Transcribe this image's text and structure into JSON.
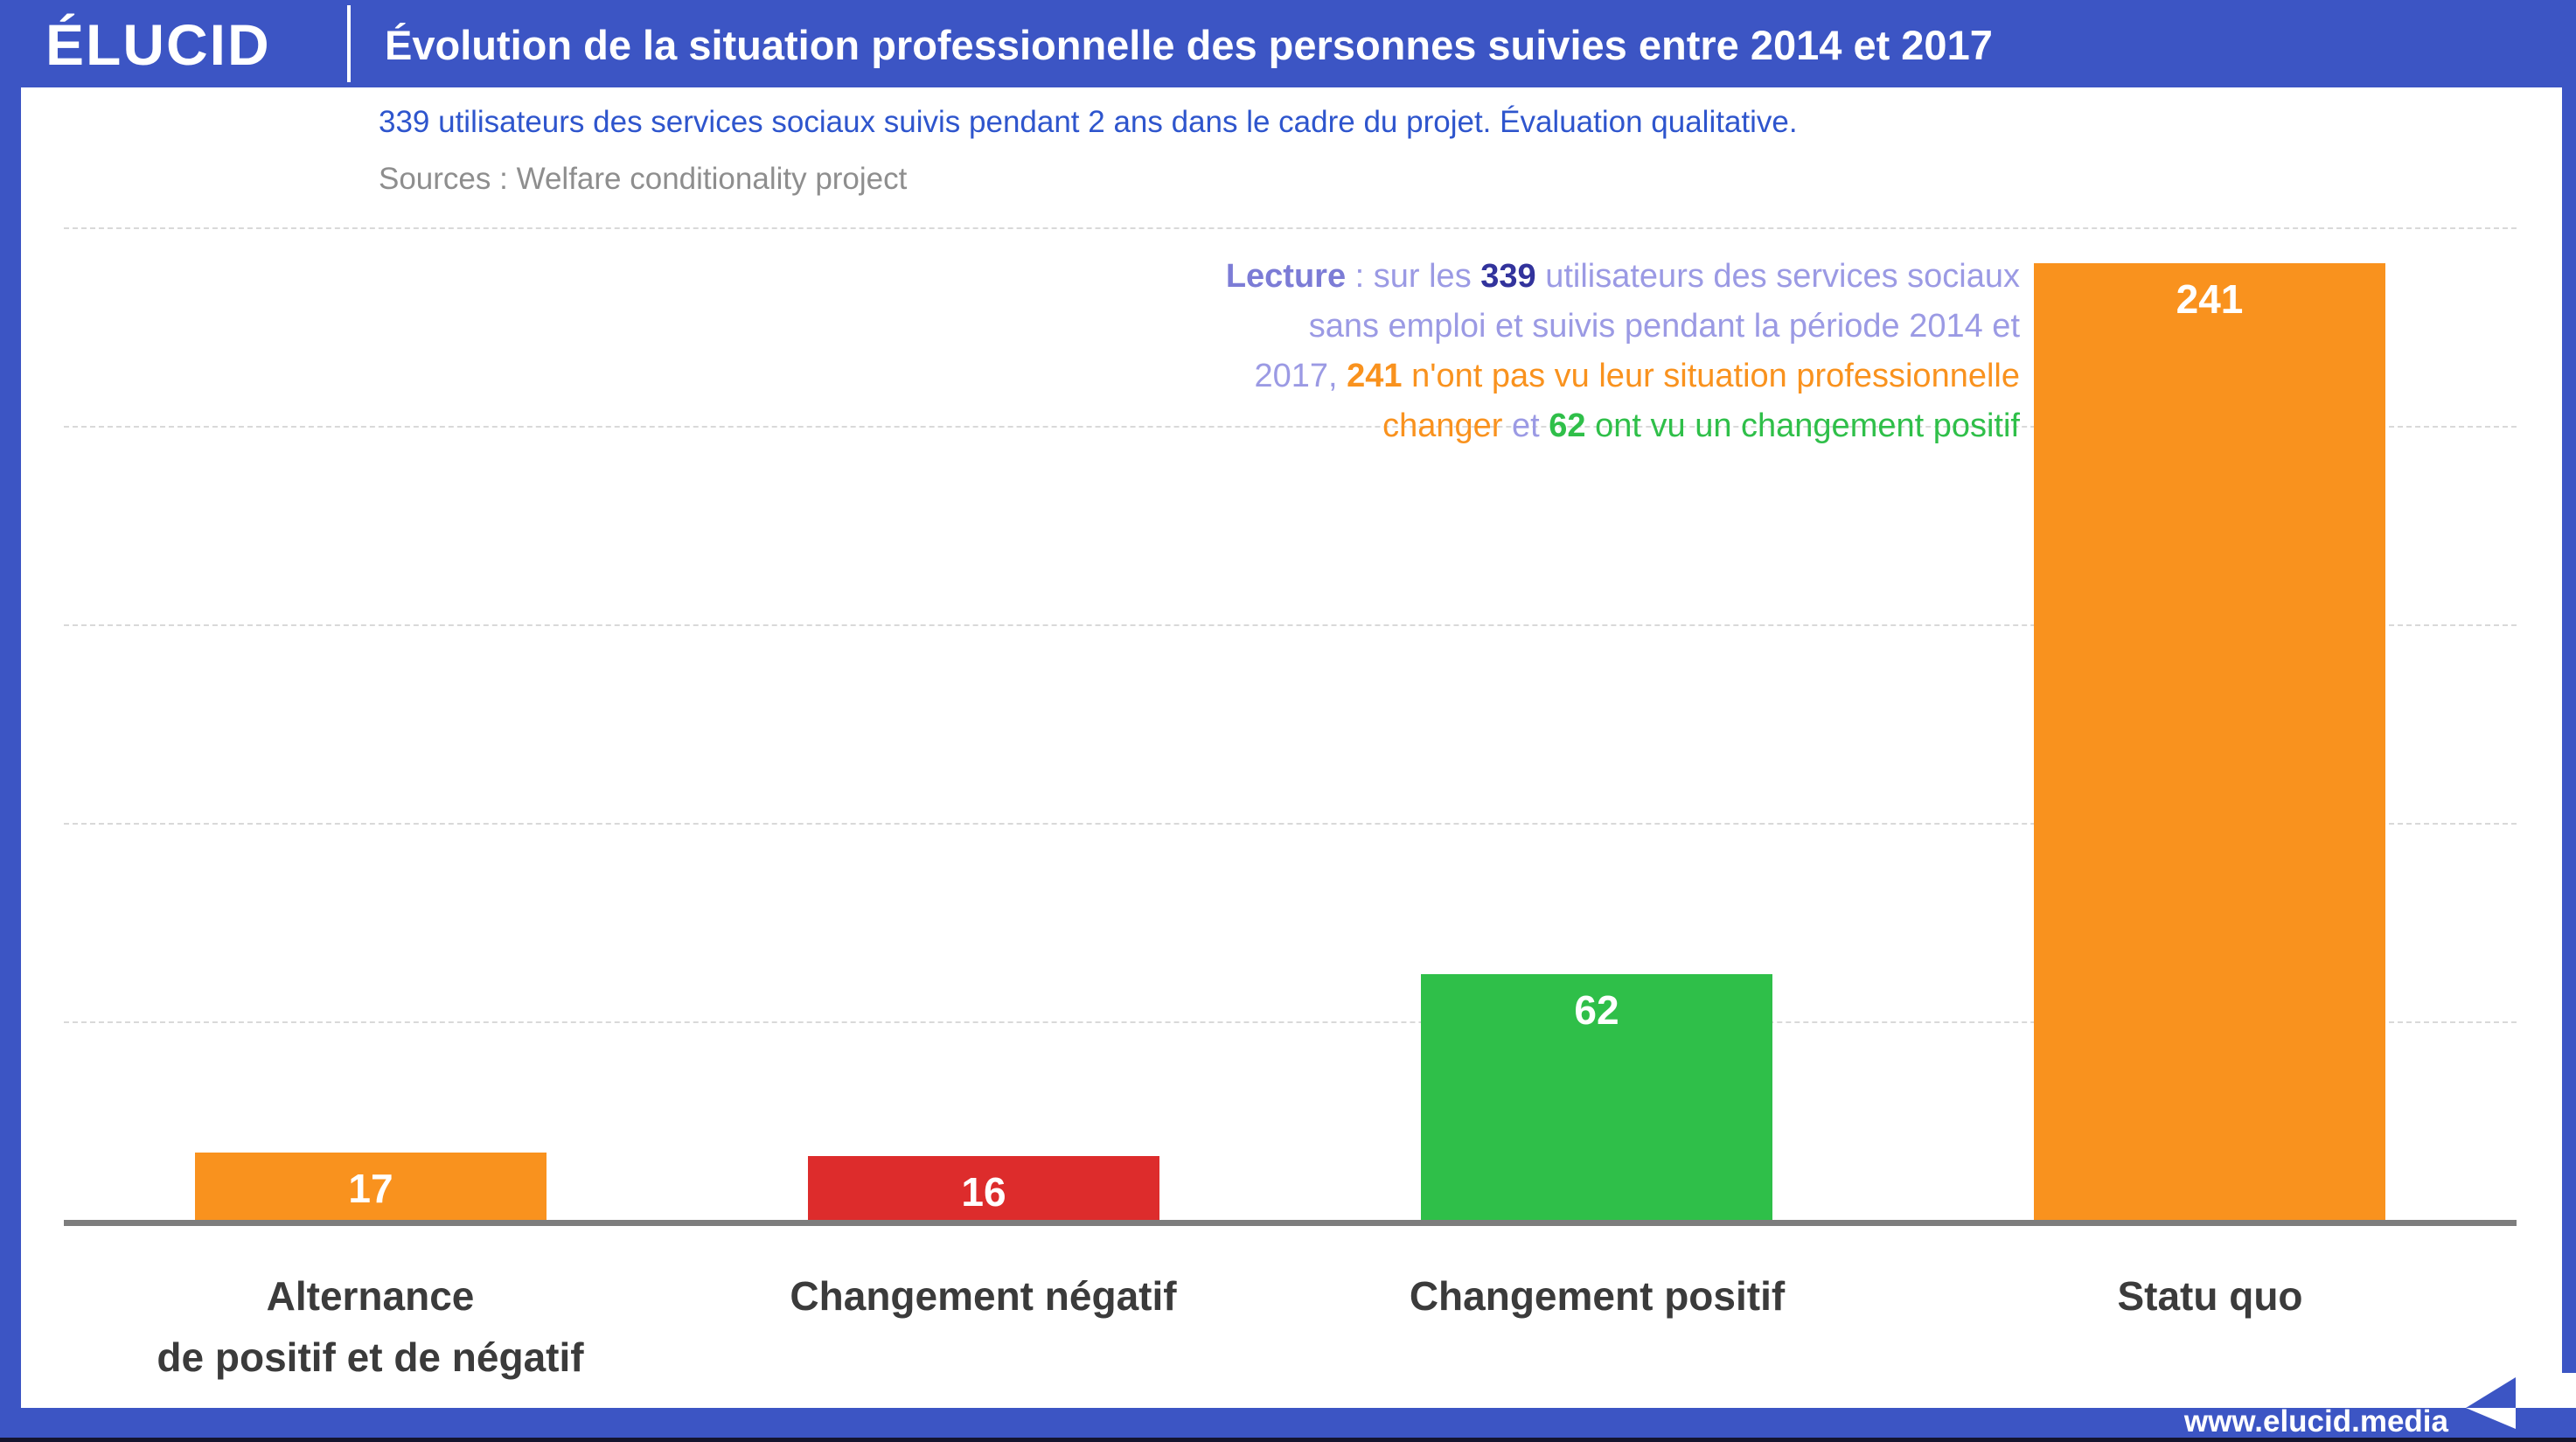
{
  "colors": {
    "brand_blue": "#3c55c4",
    "subtitle_blue": "#2e55cd",
    "source_gray": "#8e8e8e",
    "orange": "#f9921e",
    "red": "#dd2c2c",
    "green": "#2fbf49",
    "note_purple": "#9b9ae4",
    "note_purple_bold": "#7c7cd6",
    "note_navy": "#32339c",
    "category_label_gray": "#3b3b3b",
    "axis_gray": "#7d7d7d",
    "grid_gray": "#d9d9d9"
  },
  "brand": {
    "logo": "ÉLUCID"
  },
  "header": {
    "title": "Évolution de la situation professionnelle des personnes suivies entre 2014 et 2017"
  },
  "subtitle": {
    "text": "339 utilisateurs des services sociaux suivis pendant 2 ans dans le cadre du projet. Évaluation qualitative."
  },
  "source": {
    "text": "Sources : Welfare conditionality project"
  },
  "annotation": {
    "lines": [
      [
        {
          "t": "Lecture",
          "c": "note_purple_bold",
          "b": true
        },
        {
          "t": " : sur les ",
          "c": "note_purple"
        },
        {
          "t": "339",
          "c": "note_navy",
          "b": true
        },
        {
          "t": " utilisateurs des services sociaux",
          "c": "note_purple"
        }
      ],
      [
        {
          "t": "sans emploi et suivis pendant la période 2014 et",
          "c": "note_purple"
        }
      ],
      [
        {
          "t": "2017, ",
          "c": "note_purple"
        },
        {
          "t": "241",
          "c": "orange",
          "b": true
        },
        {
          "t": " n'ont pas vu leur situation professionnelle",
          "c": "orange"
        }
      ],
      [
        {
          "t": "changer",
          "c": "orange"
        },
        {
          "t": " et ",
          "c": "note_purple"
        },
        {
          "t": "62",
          "c": "green",
          "b": true
        },
        {
          "t": " ont vu un changement positif",
          "c": "green"
        }
      ]
    ]
  },
  "chart_data": {
    "type": "bar",
    "title": "Évolution de la situation professionnelle des personnes suivies entre 2014 et 2017",
    "subtitle": "339 utilisateurs des services sociaux suivis pendant 2 ans dans le cadre du projet. Évaluation qualitative.",
    "source": "Sources : Welfare conditionality project",
    "categories": [
      "Alternance de positif et de négatif",
      "Changement négatif",
      "Changement positif",
      "Statu quo"
    ],
    "category_lines": [
      [
        "Alternance",
        "de positif et de négatif"
      ],
      [
        "Changement négatif"
      ],
      [
        "Changement positif"
      ],
      [
        "Statu quo"
      ]
    ],
    "values": [
      17,
      16,
      62,
      241
    ],
    "bar_colors": [
      "#f9921e",
      "#dd2c2c",
      "#2fbf49",
      "#f9921e"
    ],
    "total": 339,
    "xlabel": "",
    "ylabel": "",
    "ylim": [
      0,
      250
    ],
    "gridline_values": [
      50,
      100,
      150,
      200,
      250
    ],
    "grid": true,
    "legend": "none",
    "value_labels_shown": true
  },
  "footer": {
    "website": "www.elucid.media"
  }
}
